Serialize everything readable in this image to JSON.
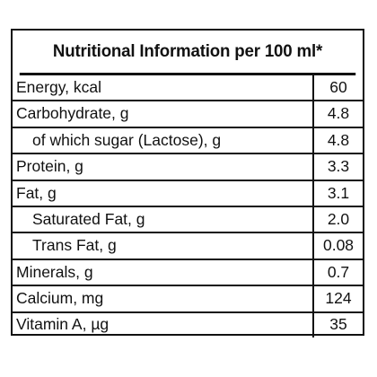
{
  "title": "Nutritional Information per 100 ml*",
  "rows": [
    {
      "name": "Energy, kcal",
      "value": "60",
      "indent": false
    },
    {
      "name": "Carbohydrate, g",
      "value": "4.8",
      "indent": false
    },
    {
      "name": "of which sugar (Lactose), g",
      "value": "4.8",
      "indent": true
    },
    {
      "name": "Protein, g",
      "value": "3.3",
      "indent": false
    },
    {
      "name": "Fat, g",
      "value": "3.1",
      "indent": false
    },
    {
      "name": "Saturated Fat, g",
      "value": "2.0",
      "indent": true
    },
    {
      "name": "Trans Fat, g",
      "value": "0.08",
      "indent": true
    },
    {
      "name": "Minerals, g",
      "value": "0.7",
      "indent": false
    },
    {
      "name": "Calcium, mg",
      "value": "124",
      "indent": false
    },
    {
      "name": "Vitamin A, µg",
      "value": "35",
      "indent": false
    }
  ]
}
